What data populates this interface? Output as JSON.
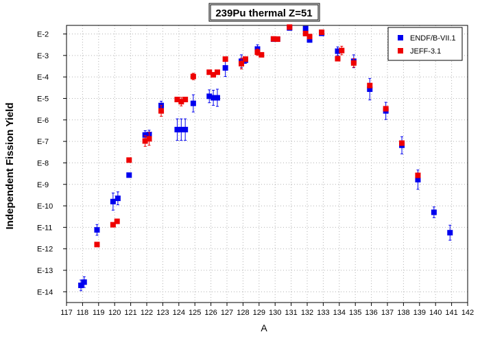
{
  "chart_data": {
    "type": "scatter",
    "title": "239Pu thermal Z=51",
    "xlabel": "A",
    "ylabel": "Independent Fission Yield",
    "xlim": [
      117,
      142
    ],
    "ylim_log10": [
      -14.5,
      -1.6
    ],
    "y_scale": "log",
    "x_ticks": [
      117,
      118,
      119,
      120,
      121,
      122,
      123,
      124,
      125,
      126,
      127,
      128,
      129,
      130,
      131,
      132,
      133,
      134,
      135,
      136,
      137,
      138,
      139,
      140,
      141,
      142
    ],
    "y_ticks": [
      {
        "exp": -2,
        "label": "E-2"
      },
      {
        "exp": -3,
        "label": "E-3"
      },
      {
        "exp": -4,
        "label": "E-4"
      },
      {
        "exp": -5,
        "label": "E-5"
      },
      {
        "exp": -6,
        "label": "E-6"
      },
      {
        "exp": -7,
        "label": "E-7"
      },
      {
        "exp": -8,
        "label": "E-8"
      },
      {
        "exp": -9,
        "label": "E-9"
      },
      {
        "exp": -10,
        "label": "E-10"
      },
      {
        "exp": -11,
        "label": "E-11"
      },
      {
        "exp": -12,
        "label": "E-12"
      },
      {
        "exp": -13,
        "label": "E-13"
      },
      {
        "exp": -14,
        "label": "E-14"
      }
    ],
    "grid": true,
    "legend_position": "top-right",
    "series": [
      {
        "name": "ENDF/B-VII.1",
        "color": "#0000ee",
        "marker": "square",
        "points": [
          {
            "x": 117.9,
            "y": -13.7,
            "err": 0.25
          },
          {
            "x": 118.1,
            "y": -13.55,
            "err": 0.25
          },
          {
            "x": 118.9,
            "y": -11.12,
            "err": 0.25
          },
          {
            "x": 119.9,
            "y": -9.8,
            "err": 0.4
          },
          {
            "x": 120.2,
            "y": -9.65,
            "err": 0.3
          },
          {
            "x": 120.9,
            "y": -8.57,
            "err": 0.05
          },
          {
            "x": 121.9,
            "y": -6.7,
            "err": 0.2
          },
          {
            "x": 122.15,
            "y": -6.68,
            "err": 0.2
          },
          {
            "x": 122.9,
            "y": -5.33,
            "err": 0.2
          },
          {
            "x": 123.9,
            "y": -6.45,
            "err": 0.5
          },
          {
            "x": 124.15,
            "y": -6.45,
            "err": 0.5
          },
          {
            "x": 124.4,
            "y": -6.45,
            "err": 0.5
          },
          {
            "x": 124.9,
            "y": -5.23,
            "err": 0.4
          },
          {
            "x": 125.9,
            "y": -4.9,
            "err": 0.3
          },
          {
            "x": 126.15,
            "y": -4.97,
            "err": 0.35
          },
          {
            "x": 126.4,
            "y": -4.97,
            "err": 0.4
          },
          {
            "x": 126.9,
            "y": -3.58,
            "err": 0.4
          },
          {
            "x": 127.9,
            "y": -3.27,
            "err": 0.3
          },
          {
            "x": 128.15,
            "y": -3.22,
            "err": 0.15
          },
          {
            "x": 128.9,
            "y": -2.7,
            "err": 0.2
          },
          {
            "x": 129.9,
            "y": -2.24,
            "err": 0.1
          },
          {
            "x": 130.15,
            "y": -2.24,
            "err": 0.1
          },
          {
            "x": 130.9,
            "y": -1.72,
            "err": 0.05
          },
          {
            "x": 131.9,
            "y": -1.75,
            "err": 0.05
          },
          {
            "x": 132.15,
            "y": -2.28,
            "err": 0.1
          },
          {
            "x": 132.9,
            "y": -1.97,
            "err": 0.05
          },
          {
            "x": 133.9,
            "y": -2.8,
            "err": 0.2
          },
          {
            "x": 134.9,
            "y": -3.27,
            "err": 0.3
          },
          {
            "x": 135.9,
            "y": -4.57,
            "err": 0.5
          },
          {
            "x": 136.9,
            "y": -5.58,
            "err": 0.4
          },
          {
            "x": 137.9,
            "y": -7.18,
            "err": 0.4
          },
          {
            "x": 138.9,
            "y": -8.78,
            "err": 0.45
          },
          {
            "x": 139.9,
            "y": -10.3,
            "err": 0.25
          },
          {
            "x": 140.9,
            "y": -11.25,
            "err": 0.35
          }
        ]
      },
      {
        "name": "JEFF-3.1",
        "color": "#ee0000",
        "marker": "square",
        "points": [
          {
            "x": 118.9,
            "y": -11.8,
            "err": 0.05
          },
          {
            "x": 119.9,
            "y": -10.88,
            "err": 0.1
          },
          {
            "x": 120.15,
            "y": -10.72,
            "err": 0.1
          },
          {
            "x": 120.9,
            "y": -7.87,
            "err": 0.05
          },
          {
            "x": 121.9,
            "y": -6.98,
            "err": 0.25
          },
          {
            "x": 122.15,
            "y": -6.88,
            "err": 0.3
          },
          {
            "x": 122.9,
            "y": -5.58,
            "err": 0.25
          },
          {
            "x": 123.9,
            "y": -5.05,
            "err": 0.1
          },
          {
            "x": 124.15,
            "y": -5.15,
            "err": 0.2
          },
          {
            "x": 124.4,
            "y": -5.05,
            "err": 0.1
          },
          {
            "x": 124.9,
            "y": -3.98,
            "err": 0.15
          },
          {
            "x": 125.9,
            "y": -3.78,
            "err": 0.1
          },
          {
            "x": 126.15,
            "y": -3.9,
            "err": 0.1
          },
          {
            "x": 126.4,
            "y": -3.78,
            "err": 0.1
          },
          {
            "x": 126.9,
            "y": -3.17,
            "err": 0.05
          },
          {
            "x": 127.9,
            "y": -3.38,
            "err": 0.25
          },
          {
            "x": 128.15,
            "y": -3.17,
            "err": 0.1
          },
          {
            "x": 128.9,
            "y": -2.85,
            "err": 0.15
          },
          {
            "x": 129.15,
            "y": -2.97,
            "err": 0.1
          },
          {
            "x": 129.9,
            "y": -2.23,
            "err": 0.05
          },
          {
            "x": 130.15,
            "y": -2.24,
            "err": 0.05
          },
          {
            "x": 130.9,
            "y": -1.68,
            "err": 0.05
          },
          {
            "x": 131.9,
            "y": -1.98,
            "err": 0.05
          },
          {
            "x": 132.15,
            "y": -2.12,
            "err": 0.05
          },
          {
            "x": 132.9,
            "y": -1.92,
            "err": 0.05
          },
          {
            "x": 133.9,
            "y": -3.15,
            "err": 0.1
          },
          {
            "x": 134.15,
            "y": -2.77,
            "err": 0.2
          },
          {
            "x": 134.9,
            "y": -3.35,
            "err": 0.2
          },
          {
            "x": 135.9,
            "y": -4.4,
            "err": 0.1
          },
          {
            "x": 136.9,
            "y": -5.48,
            "err": 0.1
          },
          {
            "x": 137.9,
            "y": -7.08,
            "err": 0.1
          },
          {
            "x": 138.9,
            "y": -8.58,
            "err": 0.1
          }
        ]
      }
    ]
  }
}
